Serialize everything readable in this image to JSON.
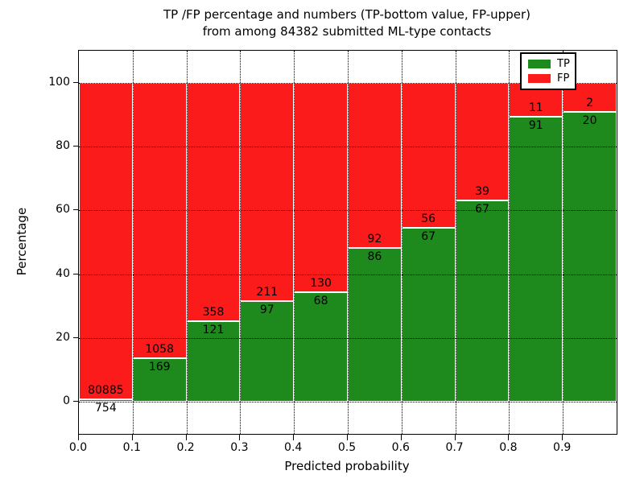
{
  "figure": {
    "title_line1": "TP /FP percentage and numbers (TP-bottom value, FP-upper)",
    "title_line2": "from among 84382 submitted ML-type contacts",
    "total_contacts": "84382"
  },
  "chart_data": {
    "type": "bar",
    "stacked": true,
    "title": "TP /FP percentage and numbers (TP-bottom value, FP-upper) from among 84382 submitted ML-type contacts",
    "xlabel": "Predicted probability",
    "ylabel": "Percentage",
    "xlim": [
      0.0,
      1.0
    ],
    "ylim": [
      -10,
      110
    ],
    "x_tick_labels": [
      "0.0",
      "0.1",
      "0.2",
      "0.3",
      "0.4",
      "0.5",
      "0.6",
      "0.7",
      "0.8",
      "0.9"
    ],
    "y_ticks": [
      0,
      20,
      40,
      60,
      80,
      100
    ],
    "grid": true,
    "bin_width": 0.1,
    "bin_starts": [
      0.0,
      0.1,
      0.2,
      0.3,
      0.4,
      0.5,
      0.6,
      0.7,
      0.8,
      0.9
    ],
    "series": [
      {
        "name": "TP",
        "color": "#1e8a1e",
        "counts": [
          754,
          169,
          121,
          97,
          68,
          86,
          67,
          67,
          91,
          20
        ],
        "percent": [
          0.92,
          13.77,
          25.26,
          31.49,
          34.34,
          48.31,
          54.47,
          63.21,
          89.22,
          90.91
        ]
      },
      {
        "name": "FP",
        "color": "#fb1b1b",
        "counts": [
          80885,
          1058,
          358,
          211,
          130,
          92,
          56,
          39,
          11,
          2
        ],
        "percent": [
          99.08,
          86.23,
          74.74,
          68.51,
          65.66,
          51.69,
          45.53,
          36.79,
          10.78,
          9.09
        ]
      }
    ],
    "legend": {
      "position": "upper right",
      "entries": [
        {
          "label": "TP",
          "color": "#1e8a1e"
        },
        {
          "label": "FP",
          "color": "#fb1b1b"
        }
      ]
    }
  }
}
